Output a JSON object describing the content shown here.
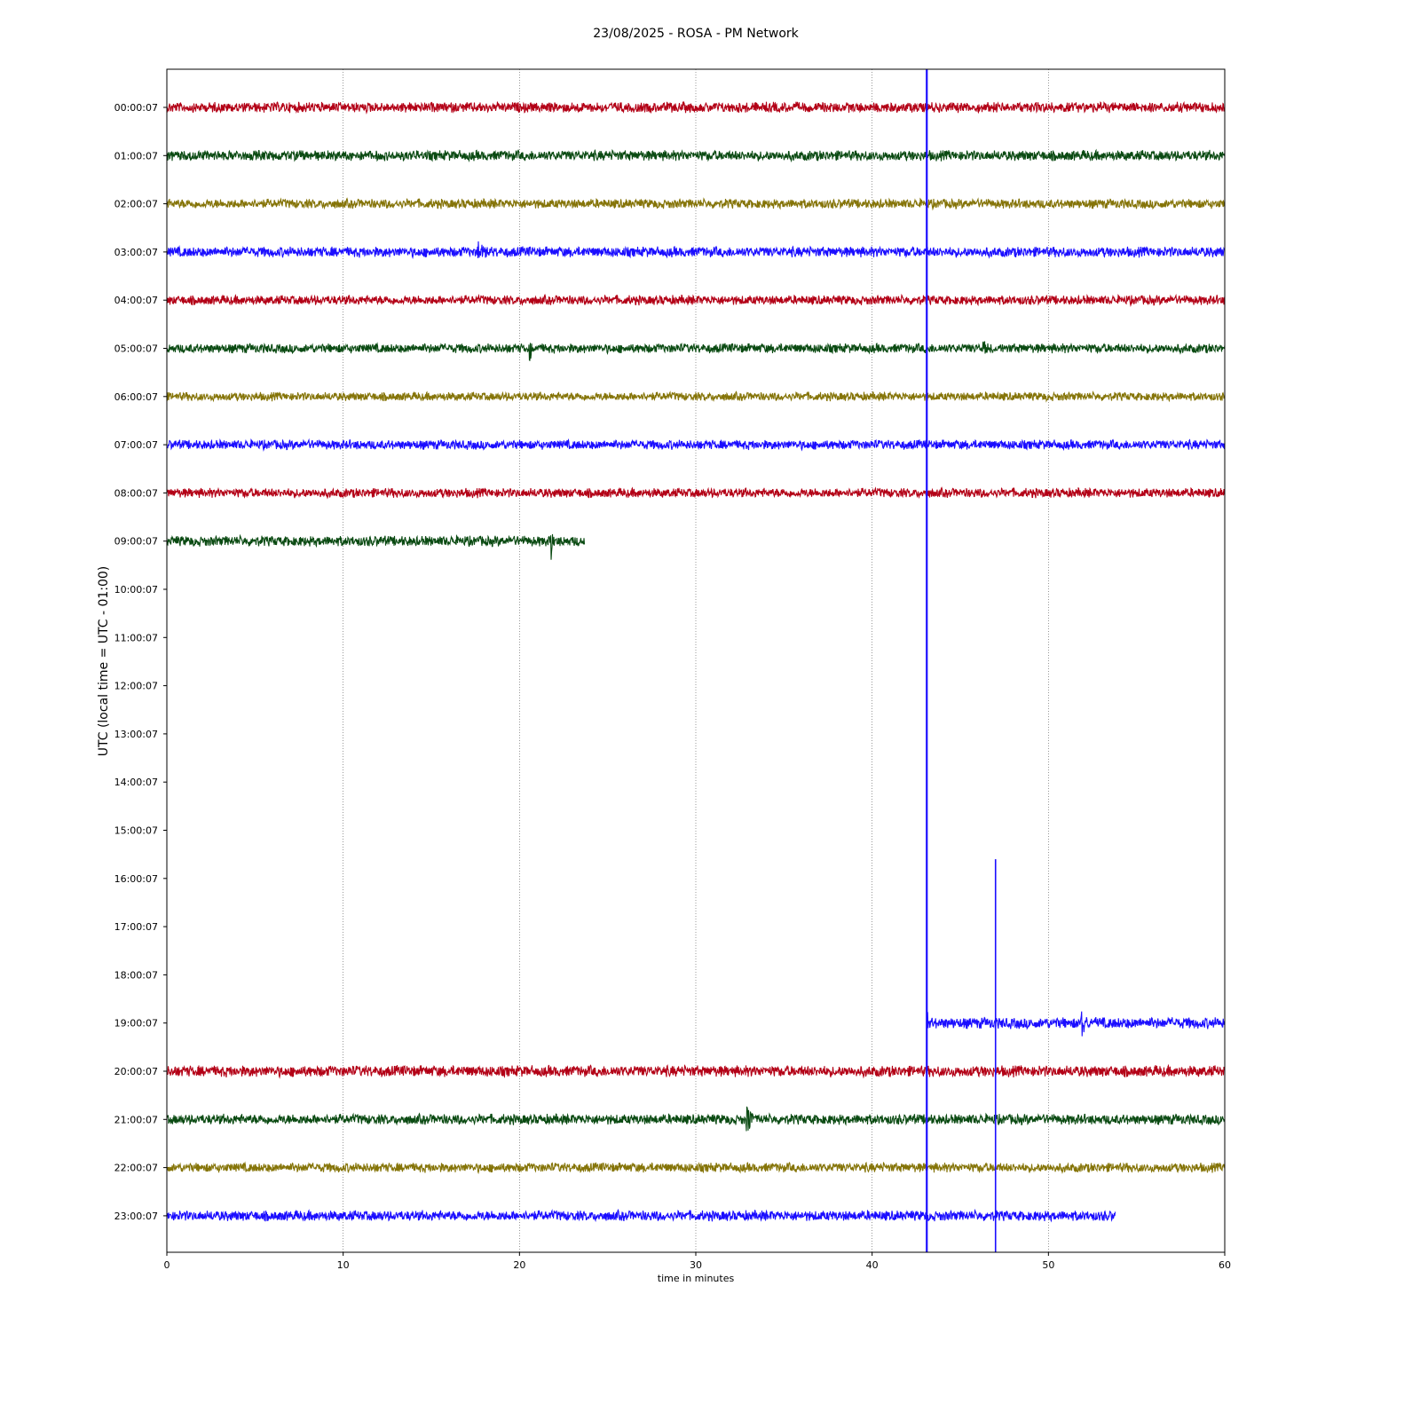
{
  "chart_data": {
    "type": "line",
    "title": "23/08/2025 - ROSA - PM Network",
    "xlabel": "time in minutes",
    "ylabel": "UTC (local time = UTC - 01:00)",
    "xlim": [
      0,
      60
    ],
    "x_ticks": [
      0,
      10,
      20,
      30,
      40,
      50,
      60
    ],
    "grid": "vertical dotted",
    "rows": [
      "00:00:07",
      "01:00:07",
      "02:00:07",
      "03:00:07",
      "04:00:07",
      "05:00:07",
      "06:00:07",
      "07:00:07",
      "08:00:07",
      "09:00:07",
      "10:00:07",
      "11:00:07",
      "12:00:07",
      "13:00:07",
      "14:00:07",
      "15:00:07",
      "16:00:07",
      "17:00:07",
      "18:00:07",
      "19:00:07",
      "20:00:07",
      "21:00:07",
      "22:00:07",
      "23:00:07"
    ],
    "colors": {
      "red": "#b30016",
      "green": "#0a4a12",
      "olive": "#857408",
      "blue": "#1a0dff"
    },
    "traces": [
      {
        "row": 0,
        "color": "red",
        "start": 0,
        "end": 60,
        "amp": 0.12,
        "events": []
      },
      {
        "row": 1,
        "color": "green",
        "start": 0,
        "end": 60,
        "amp": 0.12,
        "events": []
      },
      {
        "row": 2,
        "color": "olive",
        "start": 0,
        "end": 60,
        "amp": 0.11,
        "events": []
      },
      {
        "row": 3,
        "color": "blue",
        "start": 0,
        "end": 60,
        "amp": 0.12,
        "events": [
          {
            "t": 17.6,
            "amp": 0.42,
            "dur": 0.8
          }
        ]
      },
      {
        "row": 4,
        "color": "red",
        "start": 0,
        "end": 60,
        "amp": 0.11,
        "events": []
      },
      {
        "row": 5,
        "color": "green",
        "start": 0,
        "end": 60,
        "amp": 0.11,
        "events": [
          {
            "t": 20.6,
            "amp": 0.38,
            "dur": 0.3
          },
          {
            "t": 46.3,
            "amp": 0.22,
            "dur": 1.2
          }
        ]
      },
      {
        "row": 6,
        "color": "olive",
        "start": 0,
        "end": 60,
        "amp": 0.1,
        "events": []
      },
      {
        "row": 7,
        "color": "blue",
        "start": 0,
        "end": 60,
        "amp": 0.11,
        "events": []
      },
      {
        "row": 8,
        "color": "red",
        "start": 0,
        "end": 60,
        "amp": 0.11,
        "events": []
      },
      {
        "row": 9,
        "color": "green",
        "start": 0,
        "end": 23.7,
        "amp": 0.12,
        "events": [
          {
            "t": 21.8,
            "amp": 0.5,
            "dur": 0.2
          }
        ]
      },
      {
        "row": 19,
        "color": "blue",
        "start": 43.1,
        "end": 60,
        "amp": 0.13,
        "events": [
          {
            "t": 51.9,
            "amp": 0.4,
            "dur": 0.8
          },
          {
            "t": 43.1,
            "amp": 0.6,
            "dur": 0.2
          }
        ]
      },
      {
        "row": 20,
        "color": "red",
        "start": 0,
        "end": 60,
        "amp": 0.13,
        "events": []
      },
      {
        "row": 21,
        "color": "green",
        "start": 0,
        "end": 60,
        "amp": 0.12,
        "events": [
          {
            "t": 32.9,
            "amp": 0.55,
            "dur": 0.7
          }
        ]
      },
      {
        "row": 22,
        "color": "olive",
        "start": 0,
        "end": 60,
        "amp": 0.11,
        "events": []
      },
      {
        "row": 23,
        "color": "blue",
        "start": 0,
        "end": 53.8,
        "amp": 0.12,
        "events": []
      }
    ],
    "vertical_lines": [
      {
        "t": 43.1,
        "from_row": -0.8,
        "to_row": 23.8,
        "color": "blue",
        "width": 2.2
      },
      {
        "t": 47.0,
        "from_row": 15.6,
        "to_row": 23.8,
        "color": "blue",
        "width": 1.6
      }
    ]
  }
}
